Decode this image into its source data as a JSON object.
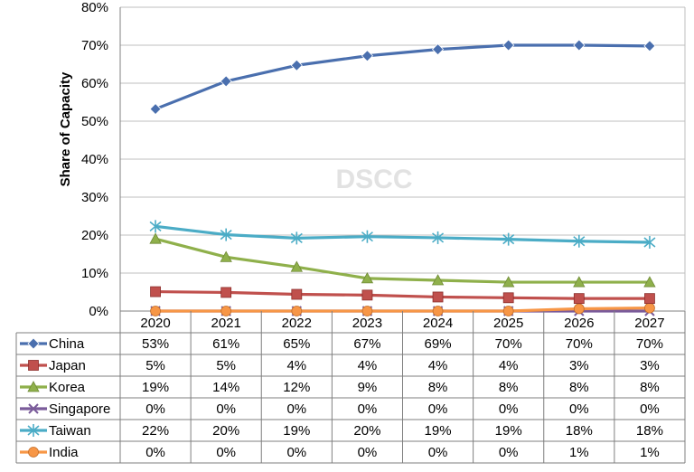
{
  "chart_data": {
    "type": "line",
    "categories": [
      "2020",
      "2021",
      "2022",
      "2023",
      "2024",
      "2025",
      "2026",
      "2027"
    ],
    "ylabel": "Share of Capacity",
    "ylim": [
      0,
      80
    ],
    "yticks": [
      "0%",
      "10%",
      "20%",
      "30%",
      "40%",
      "50%",
      "60%",
      "70%",
      "80%"
    ],
    "watermark": "DSCC",
    "grid": true,
    "legend": "data-table-left",
    "series": [
      {
        "name": "China",
        "color": "#4a6fae",
        "marker": "diamond",
        "values": [
          53.2,
          60.5,
          64.7,
          67.2,
          68.9,
          70.0,
          70.0,
          69.8
        ],
        "labels": [
          "53%",
          "61%",
          "65%",
          "67%",
          "69%",
          "70%",
          "70%",
          "70%"
        ]
      },
      {
        "name": "Japan",
        "color": "#c0504d",
        "marker": "square",
        "values": [
          5.1,
          4.9,
          4.4,
          4.2,
          3.7,
          3.5,
          3.3,
          3.3
        ],
        "labels": [
          "5%",
          "5%",
          "4%",
          "4%",
          "4%",
          "4%",
          "3%",
          "3%"
        ]
      },
      {
        "name": "Korea",
        "color": "#8fb04b",
        "marker": "triangle",
        "values": [
          19.0,
          14.2,
          11.6,
          8.6,
          8.1,
          7.6,
          7.6,
          7.6
        ],
        "labels": [
          "19%",
          "14%",
          "12%",
          "9%",
          "8%",
          "8%",
          "8%",
          "8%"
        ]
      },
      {
        "name": "Singapore",
        "color": "#7a5b9a",
        "marker": "x",
        "values": [
          0,
          0,
          0,
          0,
          0,
          0,
          0,
          0
        ],
        "labels": [
          "0%",
          "0%",
          "0%",
          "0%",
          "0%",
          "0%",
          "0%",
          "0%"
        ]
      },
      {
        "name": "Taiwan",
        "color": "#4bacc6",
        "marker": "star",
        "values": [
          22.3,
          20.1,
          19.2,
          19.6,
          19.3,
          18.9,
          18.4,
          18.1
        ],
        "labels": [
          "22%",
          "20%",
          "19%",
          "20%",
          "19%",
          "19%",
          "18%",
          "18%"
        ]
      },
      {
        "name": "India",
        "color": "#f79646",
        "marker": "circle",
        "values": [
          0,
          0,
          0,
          0,
          0,
          0,
          0.6,
          0.8
        ],
        "labels": [
          "0%",
          "0%",
          "0%",
          "0%",
          "0%",
          "0%",
          "1%",
          "1%"
        ]
      }
    ]
  }
}
